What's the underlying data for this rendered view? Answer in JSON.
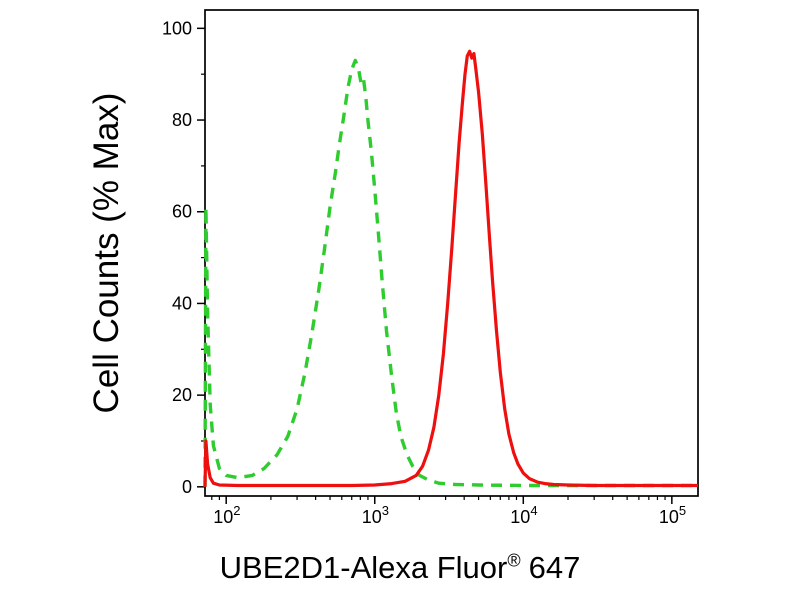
{
  "figure": {
    "background": "#ffffff",
    "axis_color": "#000000"
  },
  "chart_data": {
    "type": "line",
    "title": "",
    "ylabel": "Cell Counts (% Max)",
    "xlabel_main": "UBE2D1-Alexa Fluor",
    "xlabel_reg": "®",
    "xlabel_suffix": "647",
    "xscale": "log",
    "xlim": [
      72,
      150000
    ],
    "ylim": [
      0,
      100
    ],
    "yticks": [
      0,
      20,
      40,
      60,
      80,
      100
    ],
    "yticks_minor": [
      10,
      30,
      50,
      70,
      90
    ],
    "xtick_base": "10",
    "xtick_exponents": [
      2,
      3,
      4,
      5
    ],
    "grid": false,
    "legend": "none",
    "series": [
      {
        "id": "green-dashed-curve",
        "style": "dashed",
        "color": "#2fcc2f",
        "width": 3.4,
        "dash": "11 8",
        "peak_x": 740,
        "peak_y": 93,
        "points": [
          [
            72,
            0
          ],
          [
            73,
            61
          ],
          [
            75,
            38
          ],
          [
            78,
            18
          ],
          [
            82,
            9
          ],
          [
            90,
            4
          ],
          [
            100,
            2.5
          ],
          [
            120,
            2
          ],
          [
            150,
            2.5
          ],
          [
            180,
            4
          ],
          [
            220,
            7
          ],
          [
            260,
            11
          ],
          [
            300,
            17
          ],
          [
            340,
            25
          ],
          [
            380,
            34
          ],
          [
            420,
            43
          ],
          [
            460,
            52
          ],
          [
            500,
            61
          ],
          [
            540,
            68
          ],
          [
            580,
            75
          ],
          [
            620,
            81
          ],
          [
            660,
            87
          ],
          [
            700,
            91
          ],
          [
            740,
            93
          ],
          [
            780,
            91
          ],
          [
            810,
            88
          ],
          [
            840,
            89
          ],
          [
            870,
            85
          ],
          [
            900,
            80
          ],
          [
            950,
            73
          ],
          [
            1000,
            65
          ],
          [
            1060,
            55
          ],
          [
            1120,
            45
          ],
          [
            1200,
            34
          ],
          [
            1300,
            24
          ],
          [
            1400,
            16
          ],
          [
            1500,
            11
          ],
          [
            1650,
            7
          ],
          [
            1800,
            4.5
          ],
          [
            2000,
            2.5
          ],
          [
            2300,
            1.5
          ],
          [
            2700,
            0.8
          ],
          [
            3500,
            0.5
          ],
          [
            5000,
            0.4
          ],
          [
            10000,
            0.3
          ],
          [
            30000,
            0.3
          ],
          [
            80000,
            0.3
          ],
          [
            150000,
            0.3
          ]
        ]
      },
      {
        "id": "red-solid-curve",
        "style": "solid",
        "color": "#ee0f0f",
        "width": 3.2,
        "dash": "",
        "peak_x": 4350,
        "peak_y": 95,
        "points": [
          [
            72,
            0
          ],
          [
            73,
            10
          ],
          [
            75,
            5
          ],
          [
            78,
            2
          ],
          [
            82,
            0.8
          ],
          [
            90,
            0.4
          ],
          [
            120,
            0.3
          ],
          [
            300,
            0.3
          ],
          [
            700,
            0.3
          ],
          [
            1000,
            0.4
          ],
          [
            1300,
            0.7
          ],
          [
            1600,
            1.2
          ],
          [
            1900,
            2.5
          ],
          [
            2100,
            4.5
          ],
          [
            2300,
            8
          ],
          [
            2500,
            13
          ],
          [
            2700,
            20
          ],
          [
            2900,
            29
          ],
          [
            3100,
            40
          ],
          [
            3300,
            52
          ],
          [
            3500,
            64
          ],
          [
            3700,
            75
          ],
          [
            3900,
            84
          ],
          [
            4050,
            90
          ],
          [
            4200,
            94
          ],
          [
            4350,
            95
          ],
          [
            4500,
            93.5
          ],
          [
            4650,
            94.5
          ],
          [
            4800,
            91
          ],
          [
            5000,
            86
          ],
          [
            5300,
            77
          ],
          [
            5600,
            66
          ],
          [
            5900,
            55
          ],
          [
            6200,
            45
          ],
          [
            6600,
            34
          ],
          [
            7000,
            25
          ],
          [
            7500,
            17
          ],
          [
            8000,
            11.5
          ],
          [
            8600,
            7.5
          ],
          [
            9200,
            5
          ],
          [
            10000,
            3
          ],
          [
            11000,
            1.8
          ],
          [
            12500,
            1
          ],
          [
            14000,
            0.7
          ],
          [
            16000,
            0.5
          ],
          [
            20000,
            0.4
          ],
          [
            30000,
            0.3
          ],
          [
            60000,
            0.3
          ],
          [
            100000,
            0.3
          ],
          [
            150000,
            0.3
          ]
        ]
      }
    ]
  }
}
